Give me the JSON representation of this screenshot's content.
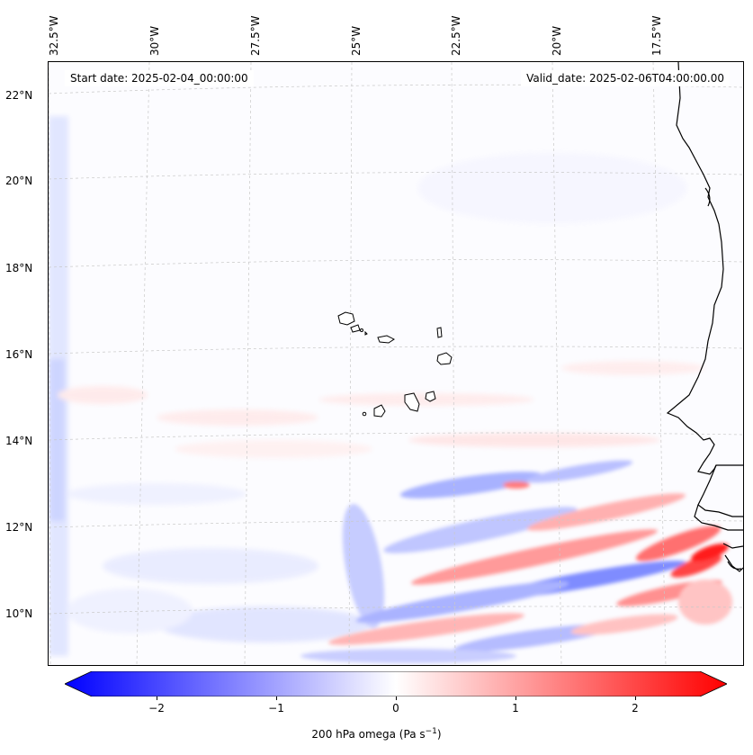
{
  "header": {
    "start_date": "Start date: 2025-02-04_00:00:00",
    "valid_date": "Valid_date: 2025-02-06T04:00:00.00"
  },
  "map": {
    "lon_labels": [
      "32.5°W",
      "30°W",
      "27.5°W",
      "25°W",
      "22.5°W",
      "20°W",
      "17.5°W"
    ],
    "lat_labels": [
      "22°N",
      "20°N",
      "18°N",
      "16°N",
      "14°N",
      "12°N",
      "10°N"
    ],
    "lon_range": [
      -33.0,
      -15.3
    ],
    "lat_range": [
      8.8,
      22.8
    ],
    "gridlines": true,
    "variable": "200 hPa omega",
    "colors": {
      "negative": "#0000ff",
      "zero": "#ffffff",
      "positive": "#ff0000",
      "coastline": "#000000"
    }
  },
  "colorbar": {
    "ticks": [
      "−2",
      "−1",
      "0",
      "1",
      "2"
    ],
    "tick_values": [
      -2,
      -1,
      0,
      1,
      2
    ],
    "range": [
      -2.5,
      2.5
    ],
    "label_main": "200 hPa omega (Pa s",
    "label_exp": "−1",
    "label_close": ")"
  }
}
